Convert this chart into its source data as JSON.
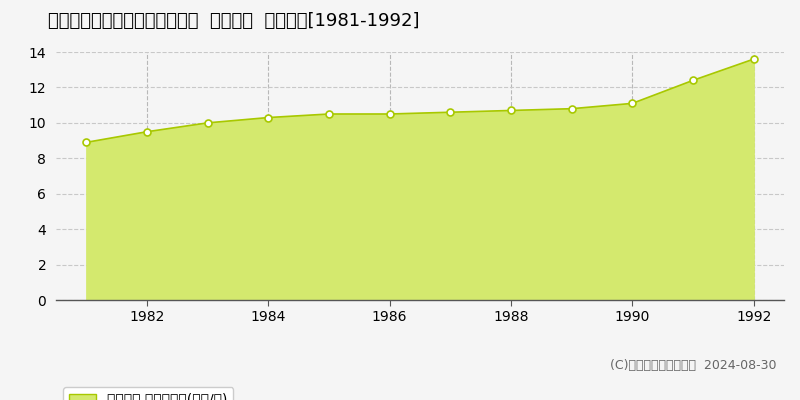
{
  "title": "福島県須賀川市崩免４６番１外  地価公示  地価推移[1981-1992]",
  "years": [
    1981,
    1982,
    1983,
    1984,
    1985,
    1986,
    1987,
    1988,
    1989,
    1990,
    1991,
    1992
  ],
  "values": [
    8.9,
    9.5,
    10.0,
    10.3,
    10.5,
    10.5,
    10.6,
    10.7,
    10.8,
    11.1,
    12.4,
    13.6
  ],
  "fill_color": "#d4e96e",
  "line_color": "#a8c800",
  "marker_color": "#ffffff",
  "marker_edge_color": "#a8c800",
  "grid_color_h": "#c8c8c8",
  "grid_color_v": "#b8b8b8",
  "bg_color": "#f5f5f5",
  "plot_bg_color": "#f5f5f5",
  "ylim": [
    0,
    14
  ],
  "yticks": [
    0,
    2,
    4,
    6,
    8,
    10,
    12,
    14
  ],
  "xticks": [
    1982,
    1984,
    1986,
    1988,
    1990,
    1992
  ],
  "xlabel": "",
  "ylabel": "",
  "legend_label": "地価公示 平均坊単価(万円/坊)",
  "copyright_text": "(C)土地価格ドットコム  2024-08-30",
  "title_fontsize": 13,
  "tick_fontsize": 10,
  "legend_fontsize": 10,
  "copyright_fontsize": 9,
  "xlim_left": 1980.5,
  "xlim_right": 1992.5
}
